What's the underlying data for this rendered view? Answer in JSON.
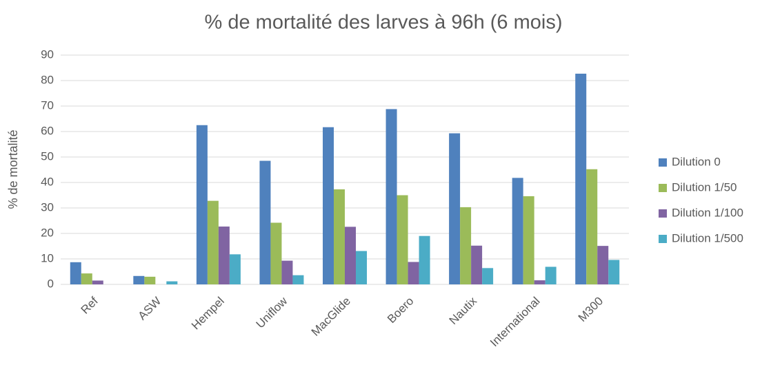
{
  "chart_data": {
    "type": "bar",
    "title": "% de mortalité des larves à 96h (6 mois)",
    "y_label": "% de mortalité",
    "categories": [
      "Ref",
      "ASW",
      "Hempel",
      "Uniflow",
      "MacGlide",
      "Boero",
      "Nautix",
      "International",
      "M300"
    ],
    "series": [
      {
        "name": "Dilution 0",
        "color": "#4f81bd",
        "values": [
          8.7,
          3.3,
          62.5,
          48.5,
          61.7,
          68.8,
          59.3,
          41.8,
          82.7
        ]
      },
      {
        "name": "Dilution 1/50",
        "color": "#9bbb59",
        "values": [
          4.3,
          3.0,
          32.8,
          24.2,
          37.3,
          35.0,
          30.3,
          34.6,
          45.2
        ]
      },
      {
        "name": "Dilution 1/100",
        "color": "#8064a2",
        "values": [
          1.5,
          0,
          22.7,
          9.3,
          22.6,
          8.8,
          15.2,
          1.6,
          15.1
        ]
      },
      {
        "name": "Dilution 1/500",
        "color": "#4bacc6",
        "values": [
          0,
          1.2,
          11.8,
          3.6,
          13.1,
          19.0,
          6.4,
          6.9,
          9.6
        ]
      }
    ],
    "ylim": [
      0,
      90
    ],
    "yticks": [
      0,
      10,
      20,
      30,
      40,
      50,
      60,
      70,
      80,
      90
    ],
    "grid": true,
    "legend": "right"
  }
}
